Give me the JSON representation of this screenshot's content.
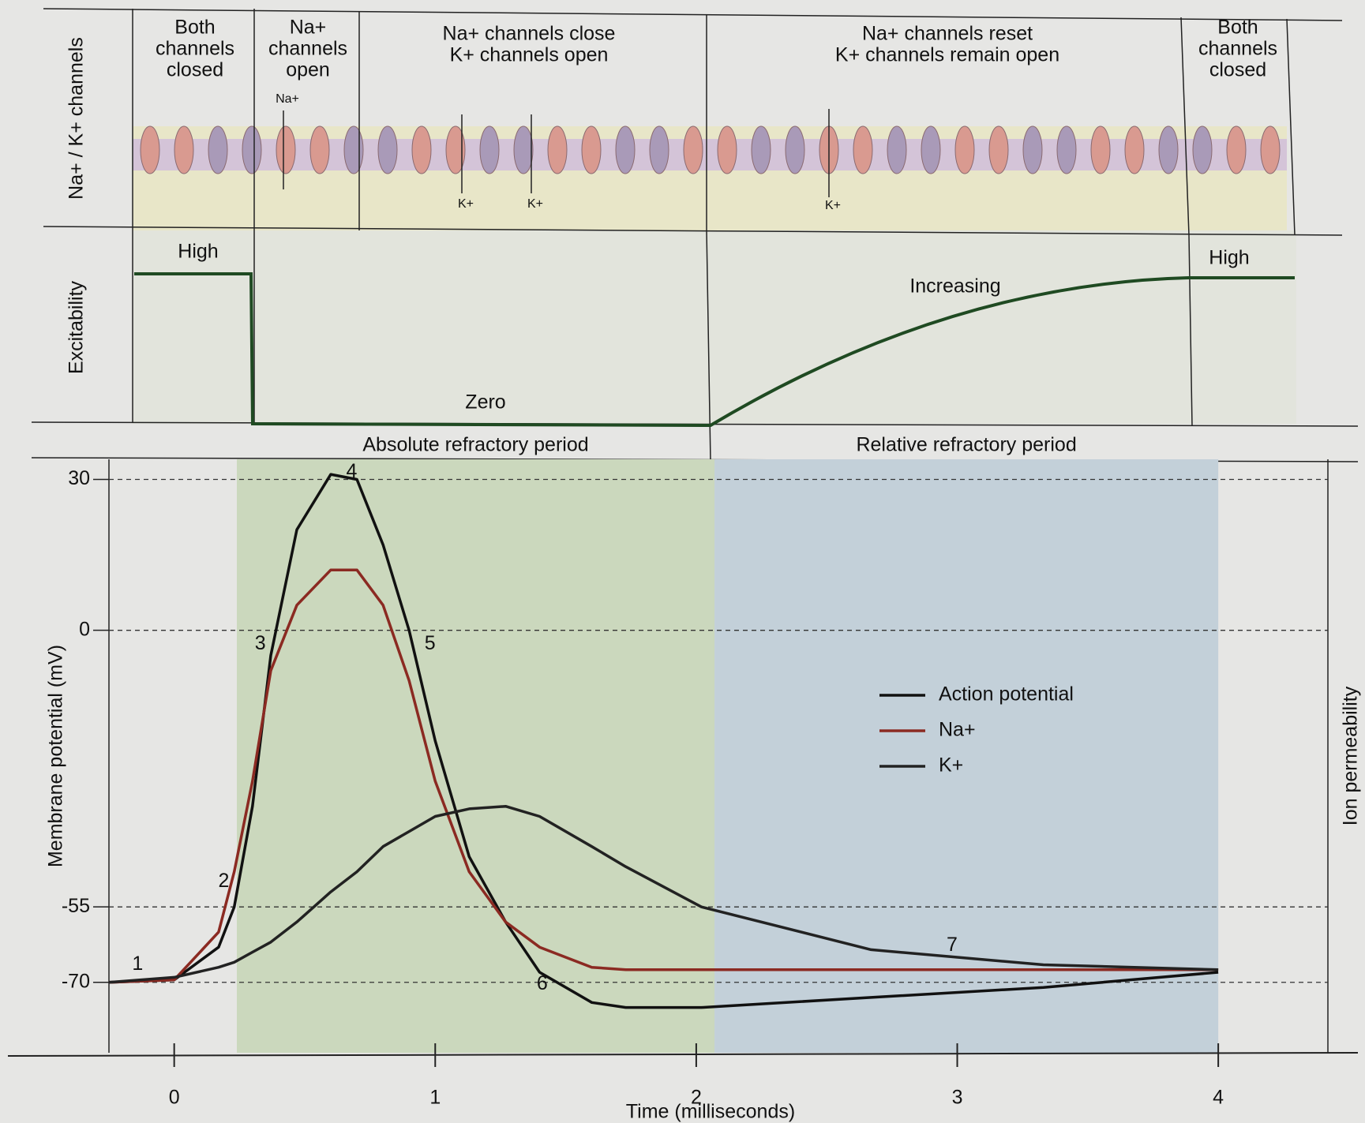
{
  "channels_panel": {
    "row_label": "Na+ / K+ channels",
    "columns": [
      [
        "Both",
        "channels",
        "closed"
      ],
      [
        "Na+",
        "channels",
        "open"
      ],
      [
        "Na+ channels close",
        "K+ channels open"
      ],
      [
        "Na+ channels reset",
        "K+ channels remain open"
      ],
      [
        "Both",
        "channels",
        "closed"
      ]
    ],
    "ion_labels": [
      "Na+",
      "K+",
      "K+",
      "K+"
    ]
  },
  "excitability_panel": {
    "row_label": "Excitability",
    "labels": [
      "High",
      "Zero",
      "Increasing",
      "High"
    ]
  },
  "chart_data": {
    "type": "line",
    "x_label": "Time (milliseconds)",
    "y_label": "Membrane potential (mV)",
    "y2_label": "Ion permeability",
    "x": [
      -0.25,
      0,
      0.17,
      0.23,
      0.3,
      0.37,
      0.47,
      0.6,
      0.7,
      0.8,
      0.9,
      1.0,
      1.13,
      1.27,
      1.4,
      1.6,
      1.73,
      2.02,
      2.67,
      3.33,
      4.0
    ],
    "series": [
      {
        "name": "Action potential",
        "color": "#111111",
        "values": [
          -70,
          -69.5,
          -63,
          -55,
          -35,
          -5,
          20,
          31,
          30,
          17,
          0,
          -22,
          -45,
          -58,
          -68,
          -74,
          -75,
          -75,
          -73,
          -71,
          -68
        ]
      },
      {
        "name": "Na+",
        "color": "#8b2a22",
        "values": [
          -70,
          -69.5,
          -60,
          -48,
          -30,
          -8,
          5,
          12,
          12,
          5,
          -10,
          -30,
          -48,
          -58,
          -63,
          -67,
          -67.5,
          -67.5,
          -67.5,
          -67.5,
          -67.5
        ]
      },
      {
        "name": "K+",
        "color": "#222222",
        "values": [
          -70,
          -69,
          -67,
          -66,
          -64,
          -62,
          -58,
          -52,
          -48,
          -43,
          -40,
          -37,
          -35.5,
          -35,
          -37,
          -43,
          -47,
          -55,
          -63.5,
          -66.5,
          -67.5
        ]
      }
    ],
    "xlim": [
      -0.25,
      4.42
    ],
    "xticks": [
      0,
      1,
      2,
      3,
      4
    ],
    "ylim": [
      -84,
      34
    ],
    "yticks": [
      30,
      0,
      -55,
      -70
    ],
    "grid": true,
    "legend": "right",
    "regions": [
      {
        "label": "Absolute refractory period",
        "x": [
          0.24,
          2.07
        ],
        "color": "#cbd8bd"
      },
      {
        "label": "Relative refractory period",
        "x": [
          2.07,
          4.0
        ],
        "color": "#c3d0d9"
      }
    ],
    "annotations": [
      {
        "text": "1",
        "x": -0.14,
        "y": -66.5
      },
      {
        "text": "2",
        "x": 0.19,
        "y": -50
      },
      {
        "text": "3",
        "x": 0.33,
        "y": -2.8
      },
      {
        "text": "4",
        "x": 0.68,
        "y": 31.4
      },
      {
        "text": "5",
        "x": 0.98,
        "y": -2.8
      },
      {
        "text": "6",
        "x": 1.41,
        "y": -70.4
      },
      {
        "text": "7",
        "x": 2.98,
        "y": -62.7
      }
    ]
  }
}
